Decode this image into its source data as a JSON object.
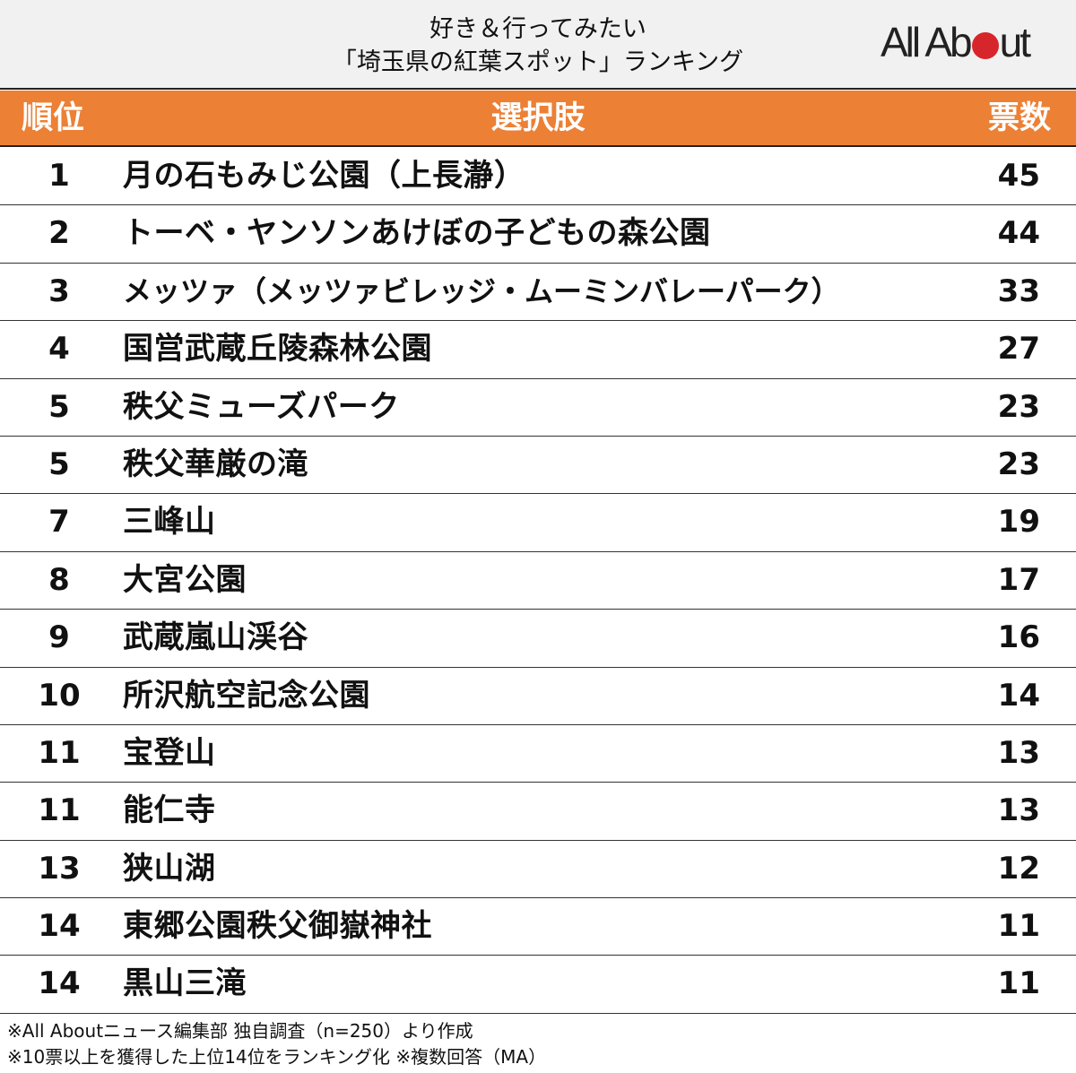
{
  "header": {
    "title_line1": "好き＆行ってみたい",
    "title_line2": "「埼玉県の紅葉スポット」ランキング",
    "logo_text_left": "All Ab",
    "logo_text_right": "ut",
    "logo_dot_color": "#d7262b"
  },
  "table": {
    "columns": {
      "rank": "順位",
      "choice": "選択肢",
      "votes": "票数"
    },
    "header_color": "#ec8035",
    "rows": [
      {
        "rank": "1",
        "name": "月の石もみじ公園（上長瀞）",
        "votes": "45"
      },
      {
        "rank": "2",
        "name": "トーベ・ヤンソンあけぼの子どもの森公園",
        "votes": "44"
      },
      {
        "rank": "3",
        "name": "メッツァ（メッツァビレッジ・ムーミンバレーパーク）",
        "votes": "33"
      },
      {
        "rank": "4",
        "name": "国営武蔵丘陵森林公園",
        "votes": "27"
      },
      {
        "rank": "5",
        "name": "秩父ミューズパーク",
        "votes": "23"
      },
      {
        "rank": "5",
        "name": "秩父華厳の滝",
        "votes": "23"
      },
      {
        "rank": "7",
        "name": "三峰山",
        "votes": "19"
      },
      {
        "rank": "8",
        "name": "大宮公園",
        "votes": "17"
      },
      {
        "rank": "9",
        "name": "武蔵嵐山渓谷",
        "votes": "16"
      },
      {
        "rank": "10",
        "name": "所沢航空記念公園",
        "votes": "14"
      },
      {
        "rank": "11",
        "name": "宝登山",
        "votes": "13"
      },
      {
        "rank": "11",
        "name": "能仁寺",
        "votes": "13"
      },
      {
        "rank": "13",
        "name": "狭山湖",
        "votes": "12"
      },
      {
        "rank": "14",
        "name": "東郷公園秩父御嶽神社",
        "votes": "11"
      },
      {
        "rank": "14",
        "name": "黒山三滝",
        "votes": "11"
      }
    ]
  },
  "footer": {
    "note1": "※All Aboutニュース編集部 独自調査（n=250）より作成",
    "note2": "※10票以上を獲得した上位14位をランキング化 ※複数回答（MA）"
  },
  "chart_data": {
    "type": "table",
    "title": "好き＆行ってみたい「埼玉県の紅葉スポット」ランキング",
    "columns": [
      "順位",
      "選択肢",
      "票数"
    ],
    "categories": [
      "月の石もみじ公園（上長瀞）",
      "トーベ・ヤンソンあけぼの子どもの森公園",
      "メッツァ（メッツァビレッジ・ムーミンバレーパーク）",
      "国営武蔵丘陵森林公園",
      "秩父ミューズパーク",
      "秩父華厳の滝",
      "三峰山",
      "大宮公園",
      "武蔵嵐山渓谷",
      "所沢航空記念公園",
      "宝登山",
      "能仁寺",
      "狭山湖",
      "東郷公園秩父御嶽神社",
      "黒山三滝"
    ],
    "ranks": [
      1,
      2,
      3,
      4,
      5,
      5,
      7,
      8,
      9,
      10,
      11,
      11,
      13,
      14,
      14
    ],
    "values": [
      45,
      44,
      33,
      27,
      23,
      23,
      19,
      17,
      16,
      14,
      13,
      13,
      12,
      11,
      11
    ],
    "notes": [
      "※All Aboutニュース編集部 独自調査（n=250）より作成",
      "※10票以上を獲得した上位14位をランキング化 ※複数回答（MA）"
    ]
  }
}
